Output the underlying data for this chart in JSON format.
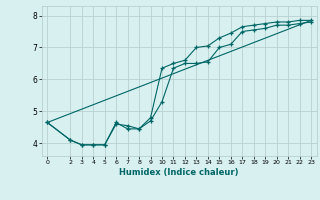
{
  "xlabel": "Humidex (Indice chaleur)",
  "bg_color": "#d8f0f0",
  "grid_color": "#b8d0d0",
  "line_color": "#006666",
  "xlim": [
    -0.5,
    23.5
  ],
  "ylim": [
    3.6,
    8.3
  ],
  "xticks": [
    0,
    2,
    3,
    4,
    5,
    6,
    7,
    8,
    9,
    10,
    11,
    12,
    13,
    14,
    15,
    16,
    17,
    18,
    19,
    20,
    21,
    22,
    23
  ],
  "yticks": [
    4,
    5,
    6,
    7,
    8
  ],
  "line1_x": [
    0,
    2,
    3,
    4,
    5,
    6,
    7,
    8,
    9,
    10,
    11,
    12,
    13,
    14,
    15,
    16,
    17,
    18,
    19,
    20,
    21,
    22,
    23
  ],
  "line1_y": [
    4.65,
    4.1,
    3.95,
    3.95,
    3.95,
    4.6,
    4.55,
    4.45,
    4.7,
    5.3,
    6.35,
    6.5,
    6.5,
    6.55,
    7.0,
    7.1,
    7.5,
    7.55,
    7.6,
    7.7,
    7.7,
    7.75,
    7.8
  ],
  "line2_x": [
    0,
    2,
    3,
    4,
    5,
    6,
    7,
    8,
    9,
    10,
    11,
    12,
    13,
    14,
    15,
    16,
    17,
    18,
    19,
    20,
    21,
    22,
    23
  ],
  "line2_y": [
    4.65,
    4.1,
    3.95,
    3.95,
    3.95,
    4.65,
    4.45,
    4.45,
    4.8,
    6.35,
    6.5,
    6.6,
    7.0,
    7.05,
    7.3,
    7.45,
    7.65,
    7.7,
    7.75,
    7.8,
    7.8,
    7.85,
    7.85
  ],
  "line3_x": [
    0,
    23
  ],
  "line3_y": [
    4.65,
    7.85
  ],
  "marker": "+"
}
